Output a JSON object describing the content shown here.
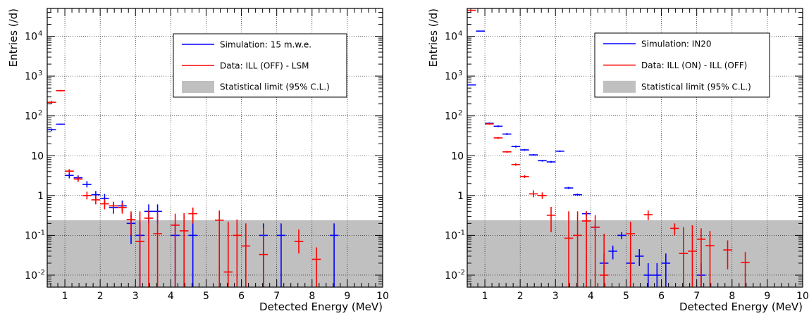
{
  "colors": {
    "simulation": "#0000ff",
    "data": "#ff0000",
    "limit_band": "#c0c0c0",
    "grid": "#000000"
  },
  "chart_data": [
    {
      "type": "scatter",
      "xlabel": "Detected Energy (MeV)",
      "ylabel": "Entries (/d)",
      "xlim": [
        0.5,
        10
      ],
      "ylim": [
        0.005,
        50000
      ],
      "yscale": "log",
      "grid": true,
      "xticks": [
        "1",
        "2",
        "3",
        "4",
        "5",
        "6",
        "7",
        "8",
        "9",
        "10"
      ],
      "yticks": [
        {
          "v": 0.01,
          "base": "10",
          "exp": "-2"
        },
        {
          "v": 0.1,
          "base": "10",
          "exp": "-1"
        },
        {
          "v": 1,
          "base": "1",
          "exp": ""
        },
        {
          "v": 10,
          "base": "10",
          "exp": ""
        },
        {
          "v": 100,
          "base": "10",
          "exp": "2"
        },
        {
          "v": 1000,
          "base": "10",
          "exp": "3"
        },
        {
          "v": 10000,
          "base": "10",
          "exp": "4"
        }
      ],
      "legend_placement": "top-right",
      "statistical_limit": 0.24,
      "legend": {
        "simulation": "Simulation: 15 m.w.e.",
        "data": "Data: ILL (OFF) - LSM",
        "limit": "Statistical limit (95% C.L.)"
      },
      "series": [
        {
          "key": "simulation",
          "points": [
            {
              "x": 0.625,
              "y": 45,
              "lo": 42,
              "hi": 48
            },
            {
              "x": 0.875,
              "y": 62,
              "lo": 60,
              "hi": 64
            },
            {
              "x": 1.125,
              "y": 3.2,
              "lo": 2.7,
              "hi": 3.7
            },
            {
              "x": 1.375,
              "y": 2.8,
              "lo": 2.4,
              "hi": 3.2
            },
            {
              "x": 1.625,
              "y": 1.9,
              "lo": 1.6,
              "hi": 2.3
            },
            {
              "x": 1.875,
              "y": 1.05,
              "lo": 0.8,
              "hi": 1.3
            },
            {
              "x": 2.125,
              "y": 0.85,
              "lo": 0.62,
              "hi": 1.1
            },
            {
              "x": 2.375,
              "y": 0.5,
              "lo": 0.35,
              "hi": 0.68
            },
            {
              "x": 2.625,
              "y": 0.55,
              "lo": 0.4,
              "hi": 0.75
            },
            {
              "x": 2.875,
              "y": 0.2,
              "lo": 0.06,
              "hi": 0.34
            },
            {
              "x": 3.125,
              "y": 0.1,
              "lo": 0.005,
              "hi": 0.22
            },
            {
              "x": 3.375,
              "y": 0.4,
              "lo": 0.2,
              "hi": 0.6
            },
            {
              "x": 3.625,
              "y": 0.4,
              "lo": 0.2,
              "hi": 0.6
            },
            {
              "x": 4.125,
              "y": 0.1,
              "lo": 0.005,
              "hi": 0.2
            },
            {
              "x": 4.625,
              "y": 0.1,
              "lo": 0.005,
              "hi": 0.2
            },
            {
              "x": 6.625,
              "y": 0.1,
              "lo": 0.005,
              "hi": 0.2
            },
            {
              "x": 7.125,
              "y": 0.1,
              "lo": 0.005,
              "hi": 0.2
            },
            {
              "x": 8.625,
              "y": 0.1,
              "lo": 0.005,
              "hi": 0.2
            }
          ]
        },
        {
          "key": "data",
          "points": [
            {
              "x": 0.625,
              "y": 220,
              "lo": 200,
              "hi": 240
            },
            {
              "x": 0.875,
              "y": 430,
              "lo": 410,
              "hi": 450
            },
            {
              "x": 1.125,
              "y": 4.1,
              "lo": 3.6,
              "hi": 4.6
            },
            {
              "x": 1.375,
              "y": 2.6,
              "lo": 2.2,
              "hi": 3.0
            },
            {
              "x": 1.625,
              "y": 1.0,
              "lo": 0.8,
              "hi": 1.25
            },
            {
              "x": 1.875,
              "y": 0.78,
              "lo": 0.6,
              "hi": 1.0
            },
            {
              "x": 2.125,
              "y": 0.62,
              "lo": 0.45,
              "hi": 0.8
            },
            {
              "x": 2.375,
              "y": 0.55,
              "lo": 0.4,
              "hi": 0.7
            },
            {
              "x": 2.625,
              "y": 0.5,
              "lo": 0.35,
              "hi": 0.65
            },
            {
              "x": 2.875,
              "y": 0.25,
              "lo": 0.1,
              "hi": 0.4
            },
            {
              "x": 3.125,
              "y": 0.07,
              "lo": 0.005,
              "hi": 0.4
            },
            {
              "x": 3.375,
              "y": 0.27,
              "lo": 0.005,
              "hi": 0.42
            },
            {
              "x": 3.625,
              "y": 0.11,
              "lo": 0.005,
              "hi": 0.4
            },
            {
              "x": 4.125,
              "y": 0.18,
              "lo": 0.005,
              "hi": 0.35
            },
            {
              "x": 4.375,
              "y": 0.13,
              "lo": 0.005,
              "hi": 0.36
            },
            {
              "x": 4.625,
              "y": 0.35,
              "lo": 0.2,
              "hi": 0.5
            },
            {
              "x": 5.375,
              "y": 0.24,
              "lo": 0.005,
              "hi": 0.42
            },
            {
              "x": 5.625,
              "y": 0.012,
              "lo": 0.005,
              "hi": 0.22
            },
            {
              "x": 5.875,
              "y": 0.1,
              "lo": 0.005,
              "hi": 0.25
            },
            {
              "x": 6.125,
              "y": 0.054,
              "lo": 0.005,
              "hi": 0.2
            },
            {
              "x": 6.625,
              "y": 0.033,
              "lo": 0.005,
              "hi": 0.15
            },
            {
              "x": 7.625,
              "y": 0.07,
              "lo": 0.035,
              "hi": 0.14
            },
            {
              "x": 8.125,
              "y": 0.025,
              "lo": 0.005,
              "hi": 0.05
            }
          ]
        }
      ]
    },
    {
      "type": "scatter",
      "xlabel": "Detected Energy (MeV)",
      "ylabel": "Entries (/d)",
      "xlim": [
        0.5,
        10
      ],
      "ylim": [
        0.005,
        50000
      ],
      "yscale": "log",
      "grid": true,
      "xticks": [
        "1",
        "2",
        "3",
        "4",
        "5",
        "6",
        "7",
        "8",
        "9",
        "10"
      ],
      "yticks": [
        {
          "v": 0.01,
          "base": "10",
          "exp": "-2"
        },
        {
          "v": 0.1,
          "base": "10",
          "exp": "-1"
        },
        {
          "v": 1,
          "base": "1",
          "exp": ""
        },
        {
          "v": 10,
          "base": "10",
          "exp": ""
        },
        {
          "v": 100,
          "base": "10",
          "exp": "2"
        },
        {
          "v": 1000,
          "base": "10",
          "exp": "3"
        },
        {
          "v": 10000,
          "base": "10",
          "exp": "4"
        }
      ],
      "legend_placement": "top-right",
      "statistical_limit": 0.24,
      "legend": {
        "simulation": "Simulation: IN20",
        "data": "Data: ILL (ON) - ILL (OFF)",
        "limit": "Statistical limit (95% C.L.)"
      },
      "series": [
        {
          "key": "simulation",
          "points": [
            {
              "x": 0.625,
              "y": 600,
              "lo": 590,
              "hi": 610
            },
            {
              "x": 0.875,
              "y": 13500,
              "lo": 13300,
              "hi": 13700
            },
            {
              "x": 1.125,
              "y": 65,
              "lo": 62,
              "hi": 68
            },
            {
              "x": 1.375,
              "y": 55,
              "lo": 52,
              "hi": 58
            },
            {
              "x": 1.625,
              "y": 35,
              "lo": 33,
              "hi": 37
            },
            {
              "x": 1.875,
              "y": 17,
              "lo": 16,
              "hi": 18
            },
            {
              "x": 2.125,
              "y": 14,
              "lo": 13.3,
              "hi": 14.7
            },
            {
              "x": 2.375,
              "y": 10.5,
              "lo": 10,
              "hi": 11
            },
            {
              "x": 2.625,
              "y": 7.5,
              "lo": 7.1,
              "hi": 7.9
            },
            {
              "x": 2.875,
              "y": 7,
              "lo": 6.6,
              "hi": 7.4
            },
            {
              "x": 3.125,
              "y": 13,
              "lo": 12.4,
              "hi": 13.6
            },
            {
              "x": 3.375,
              "y": 1.55,
              "lo": 1.45,
              "hi": 1.65
            },
            {
              "x": 3.625,
              "y": 1.05,
              "lo": 0.98,
              "hi": 1.12
            },
            {
              "x": 3.875,
              "y": 0.35,
              "lo": 0.3,
              "hi": 0.4
            },
            {
              "x": 4.125,
              "y": 0.16,
              "lo": 0.13,
              "hi": 0.19
            },
            {
              "x": 4.375,
              "y": 0.02,
              "lo": 0.005,
              "hi": 0.035
            },
            {
              "x": 4.625,
              "y": 0.04,
              "lo": 0.025,
              "hi": 0.055
            },
            {
              "x": 4.875,
              "y": 0.1,
              "lo": 0.08,
              "hi": 0.12
            },
            {
              "x": 5.125,
              "y": 0.02,
              "lo": 0.005,
              "hi": 0.035
            },
            {
              "x": 5.375,
              "y": 0.03,
              "lo": 0.017,
              "hi": 0.045
            },
            {
              "x": 5.625,
              "y": 0.01,
              "lo": 0.005,
              "hi": 0.02
            },
            {
              "x": 5.875,
              "y": 0.01,
              "lo": 0.005,
              "hi": 0.02
            },
            {
              "x": 6.125,
              "y": 0.02,
              "lo": 0.005,
              "hi": 0.035
            },
            {
              "x": 7.125,
              "y": 0.01,
              "lo": 0.005,
              "hi": 0.02
            }
          ]
        },
        {
          "key": "data",
          "points": [
            {
              "x": 0.625,
              "y": 45000,
              "lo": 44500,
              "hi": 45500
            },
            {
              "x": 1.125,
              "y": 63,
              "lo": 60,
              "hi": 66
            },
            {
              "x": 1.375,
              "y": 28,
              "lo": 26.5,
              "hi": 29.5
            },
            {
              "x": 1.625,
              "y": 12.5,
              "lo": 11.8,
              "hi": 13.2
            },
            {
              "x": 1.875,
              "y": 6,
              "lo": 5.6,
              "hi": 6.4
            },
            {
              "x": 2.125,
              "y": 3,
              "lo": 2.75,
              "hi": 3.25
            },
            {
              "x": 2.375,
              "y": 1.1,
              "lo": 0.9,
              "hi": 1.35
            },
            {
              "x": 2.625,
              "y": 1,
              "lo": 0.82,
              "hi": 1.2
            },
            {
              "x": 2.875,
              "y": 0.32,
              "lo": 0.12,
              "hi": 0.52
            },
            {
              "x": 3.375,
              "y": 0.085,
              "lo": 0.005,
              "hi": 0.4
            },
            {
              "x": 3.625,
              "y": 0.1,
              "lo": 0.005,
              "hi": 0.4
            },
            {
              "x": 3.875,
              "y": 0.23,
              "lo": 0.005,
              "hi": 0.4
            },
            {
              "x": 4.125,
              "y": 0.16,
              "lo": 0.005,
              "hi": 0.32
            },
            {
              "x": 4.375,
              "y": 0.01,
              "lo": 0.005,
              "hi": 0.11
            },
            {
              "x": 5.125,
              "y": 0.11,
              "lo": 0.005,
              "hi": 0.22
            },
            {
              "x": 5.625,
              "y": 0.33,
              "lo": 0.24,
              "hi": 0.42
            },
            {
              "x": 6.375,
              "y": 0.15,
              "lo": 0.1,
              "hi": 0.2
            },
            {
              "x": 6.625,
              "y": 0.035,
              "lo": 0.005,
              "hi": 0.16
            },
            {
              "x": 6.875,
              "y": 0.04,
              "lo": 0.005,
              "hi": 0.18
            },
            {
              "x": 7.125,
              "y": 0.08,
              "lo": 0.005,
              "hi": 0.15
            },
            {
              "x": 7.375,
              "y": 0.055,
              "lo": 0.005,
              "hi": 0.13
            },
            {
              "x": 7.875,
              "y": 0.043,
              "lo": 0.014,
              "hi": 0.075
            },
            {
              "x": 8.375,
              "y": 0.021,
              "lo": 0.005,
              "hi": 0.038
            }
          ]
        }
      ]
    }
  ]
}
